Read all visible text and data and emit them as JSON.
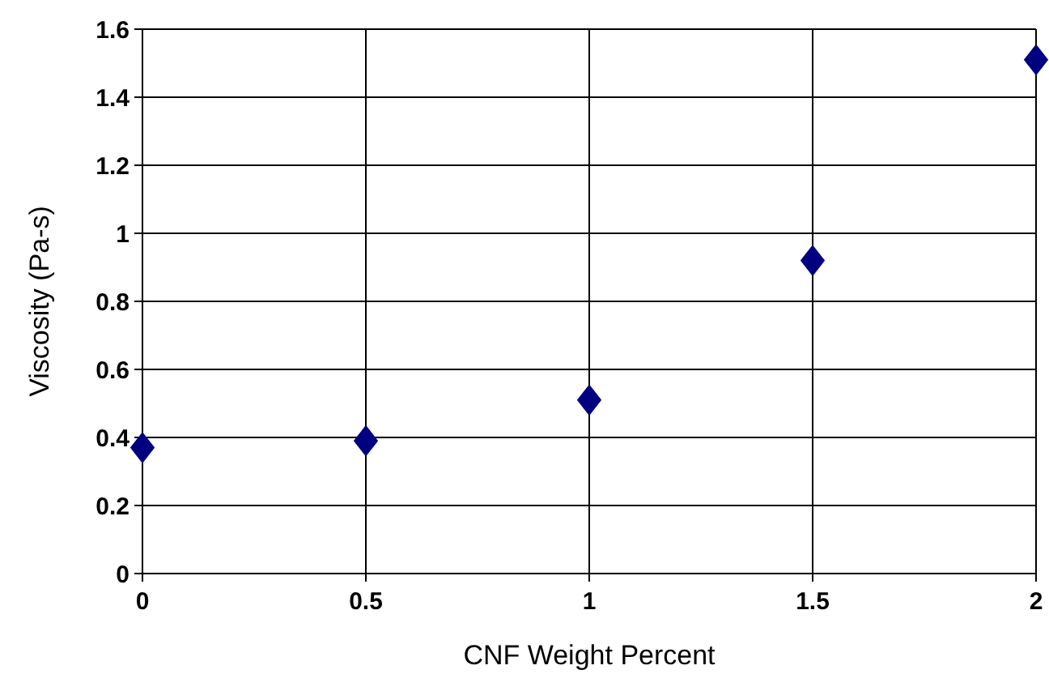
{
  "chart_data": {
    "type": "scatter",
    "xlabel": "CNF Weight Percent",
    "ylabel": "Viscosity (Pa-s)",
    "x": [
      0,
      0.5,
      1,
      1.5,
      2
    ],
    "series": [
      {
        "color": "#000080",
        "values": [
          0.37,
          0.39,
          0.51,
          0.92,
          1.51
        ]
      }
    ],
    "xlim": [
      0,
      2
    ],
    "xticks": [
      0,
      0.5,
      1,
      1.5,
      2
    ],
    "ylim": [
      0,
      1.6
    ],
    "yticks": [
      0,
      0.2,
      0.4,
      0.6,
      0.8,
      1,
      1.2,
      1.4,
      1.6
    ],
    "grid": true,
    "marker": "diamond"
  }
}
